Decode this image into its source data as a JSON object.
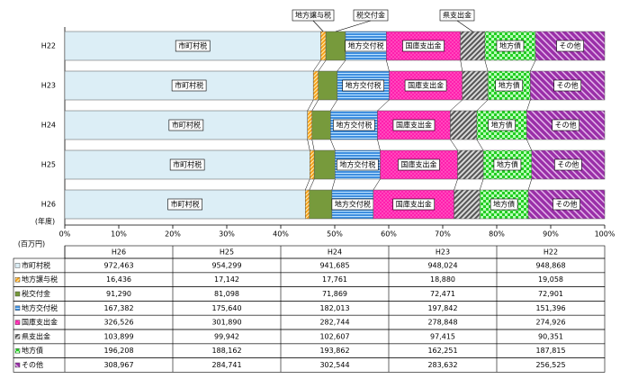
{
  "chart_data": {
    "type": "bar",
    "stacked": "percent",
    "orientation": "horizontal",
    "unit_label": "(百万円)",
    "category_axis_label": "(年度)",
    "categories": [
      "H26",
      "H25",
      "H24",
      "H23",
      "H22"
    ],
    "xlim": [
      0,
      100
    ],
    "xticks": [
      {
        "value": 0,
        "label": "0%"
      },
      {
        "value": 10,
        "label": "10%"
      },
      {
        "value": 20,
        "label": "20%"
      },
      {
        "value": 30,
        "label": "30%"
      },
      {
        "value": 40,
        "label": "40%"
      },
      {
        "value": 50,
        "label": "50%"
      },
      {
        "value": 60,
        "label": "60%"
      },
      {
        "value": 70,
        "label": "70%"
      },
      {
        "value": 80,
        "label": "80%"
      },
      {
        "value": 90,
        "label": "90%"
      },
      {
        "value": 100,
        "label": "100%"
      }
    ],
    "series": [
      {
        "name": "市町村税",
        "color": "#dceef6",
        "values": [
          972463,
          954299,
          941685,
          948024,
          948868
        ],
        "value_labels": [
          "972,463",
          "954,299",
          "941,685",
          "948,024",
          "948,868"
        ]
      },
      {
        "name": "地方譲与税",
        "color": "#f7a21b",
        "values": [
          16436,
          17142,
          17761,
          18880,
          19058
        ],
        "value_labels": [
          "16,436",
          "17,142",
          "17,761",
          "18,880",
          "19,058"
        ]
      },
      {
        "name": "税交付金",
        "color": "#779a3c",
        "values": [
          91290,
          81098,
          71869,
          72471,
          72901
        ],
        "value_labels": [
          "91,290",
          "81,098",
          "71,869",
          "72,471",
          "72,901"
        ]
      },
      {
        "name": "地方交付税",
        "color": "#3f8fe0",
        "values": [
          167382,
          175640,
          182013,
          197842,
          151396
        ],
        "value_labels": [
          "167,382",
          "175,640",
          "182,013",
          "197,842",
          "151,396"
        ]
      },
      {
        "name": "国庫支出金",
        "color": "#ff1fae",
        "values": [
          326526,
          301890,
          282744,
          278848,
          274926
        ],
        "value_labels": [
          "326,526",
          "301,890",
          "282,744",
          "278,848",
          "274,926"
        ]
      },
      {
        "name": "県支出金",
        "color": "#a6a6a6",
        "values": [
          103899,
          99942,
          102607,
          97415,
          90351
        ],
        "value_labels": [
          "103,899",
          "99,942",
          "102,607",
          "97,415",
          "90,351"
        ]
      },
      {
        "name": "地方債",
        "color": "#22cc22",
        "values": [
          196208,
          188162,
          193862,
          162251,
          187815
        ],
        "value_labels": [
          "196,208",
          "188,162",
          "193,862",
          "162,251",
          "187,815"
        ]
      },
      {
        "name": "その他",
        "color": "#9a2fa8",
        "values": [
          308967,
          284741,
          302544,
          283632,
          256525
        ],
        "value_labels": [
          "308,967",
          "284,741",
          "302,544",
          "283,632",
          "256,525"
        ]
      }
    ]
  }
}
